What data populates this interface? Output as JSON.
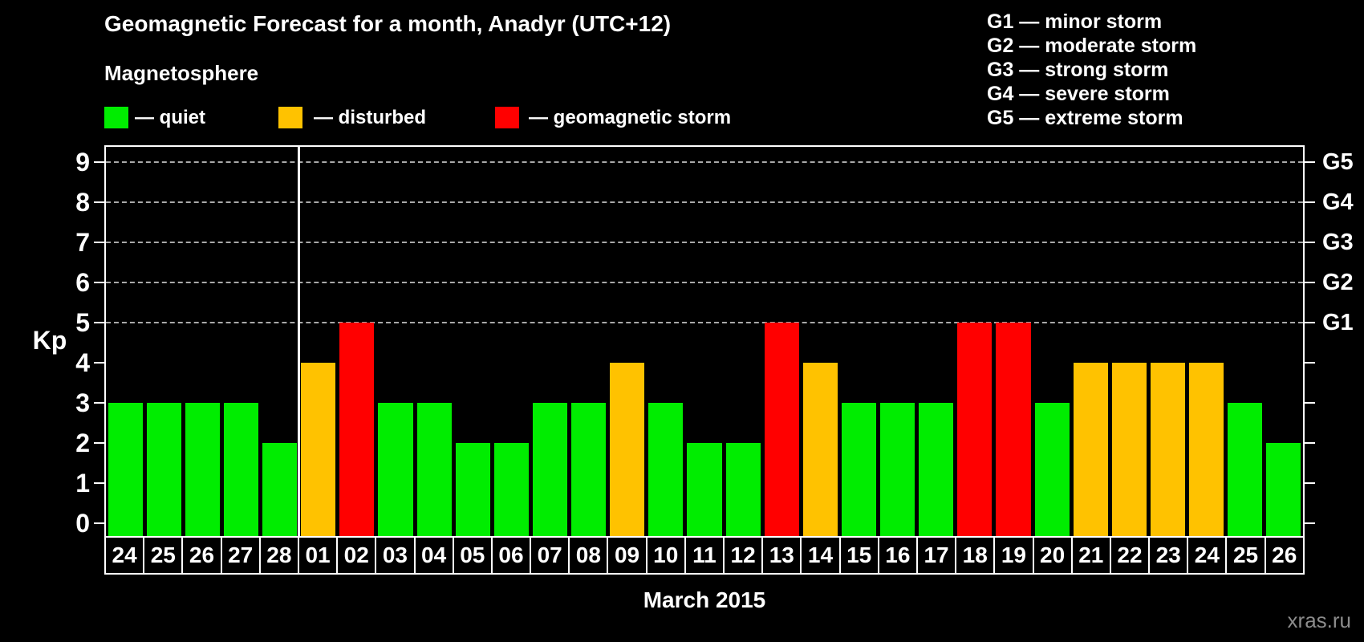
{
  "header": {
    "title": "Geomagnetic Forecast for a month, Anadyr (UTC+12)",
    "subtitle": "Magnetosphere"
  },
  "legend": {
    "items": [
      {
        "name": "quiet",
        "label": "— quiet",
        "color": "#00ED00"
      },
      {
        "name": "disturbed",
        "label": "— disturbed",
        "color": "#FFC200"
      },
      {
        "name": "storm",
        "label": "— geomagnetic storm",
        "color": "#FF0000"
      }
    ]
  },
  "storm_scale": [
    {
      "label": "G1 — minor storm"
    },
    {
      "label": "G2 — moderate storm"
    },
    {
      "label": "G3 — strong storm"
    },
    {
      "label": "G4 — severe storm"
    },
    {
      "label": "G5 — extreme storm"
    }
  ],
  "axis": {
    "kp_label": "Kp",
    "kp_ticks": [
      0,
      1,
      2,
      3,
      4,
      5,
      6,
      7,
      8,
      9
    ]
  },
  "chart_data": {
    "type": "bar",
    "title": "Geomagnetic Forecast for a month, Anadyr (UTC+12)",
    "xlabel": "March 2015",
    "ylabel": "Kp",
    "ylim": [
      0,
      9
    ],
    "grid": "horizontal dashed lines at Kp 5,6,7,8,9",
    "legend_position": "top-left",
    "categories": [
      "24",
      "25",
      "26",
      "27",
      "28",
      "01",
      "02",
      "03",
      "04",
      "05",
      "06",
      "07",
      "08",
      "09",
      "10",
      "11",
      "12",
      "13",
      "14",
      "15",
      "16",
      "17",
      "18",
      "19",
      "20",
      "21",
      "22",
      "23",
      "24",
      "25",
      "26"
    ],
    "values": [
      3,
      3,
      3,
      3,
      2,
      4,
      5,
      3,
      3,
      2,
      2,
      3,
      3,
      4,
      3,
      2,
      2,
      5,
      4,
      3,
      3,
      3,
      5,
      5,
      3,
      4,
      4,
      4,
      4,
      3,
      2
    ],
    "states": [
      "quiet",
      "quiet",
      "quiet",
      "quiet",
      "quiet",
      "disturbed",
      "storm",
      "quiet",
      "quiet",
      "quiet",
      "quiet",
      "quiet",
      "quiet",
      "disturbed",
      "quiet",
      "quiet",
      "quiet",
      "storm",
      "disturbed",
      "quiet",
      "quiet",
      "quiet",
      "storm",
      "storm",
      "quiet",
      "disturbed",
      "disturbed",
      "disturbed",
      "disturbed",
      "quiet",
      "quiet"
    ],
    "colors": {
      "quiet": "#00ED00",
      "disturbed": "#FFC200",
      "storm": "#FF0000"
    },
    "month_separator_after_index": 4,
    "right_axis": [
      {
        "kp": 5,
        "label": "G1"
      },
      {
        "kp": 6,
        "label": "G2"
      },
      {
        "kp": 7,
        "label": "G3"
      },
      {
        "kp": 8,
        "label": "G4"
      },
      {
        "kp": 9,
        "label": "G5"
      }
    ]
  },
  "footer": {
    "month_label": "March 2015",
    "watermark": "xras.ru"
  }
}
